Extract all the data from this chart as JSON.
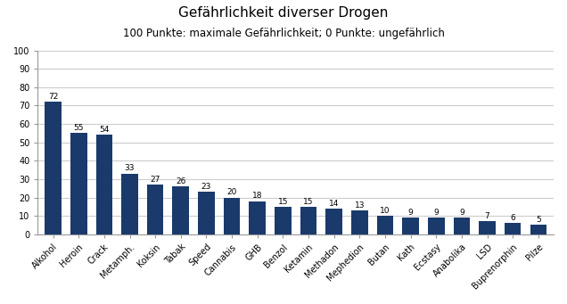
{
  "title": "Gefährlichkeit diverser Drogen",
  "subtitle": "100 Punkte: maximale Gefährlichkeit; 0 Punkte: ungefährlich",
  "categories": [
    "Alkohol",
    "Heroin",
    "Crack",
    "Metamph.",
    "Koksin",
    "Tabak",
    "Speed",
    "Cannabis",
    "GHB",
    "Benzol",
    "Ketamin",
    "Methadon",
    "Mephedion",
    "Butan",
    "Kath",
    "Ecstasy",
    "Anabolika",
    "LSD",
    "Buprenorphin",
    "Pilze"
  ],
  "values": [
    72,
    55,
    54,
    33,
    27,
    26,
    23,
    20,
    18,
    15,
    15,
    14,
    13,
    10,
    9,
    9,
    9,
    7,
    6,
    5
  ],
  "bar_color": "#1a3a6b",
  "ylim": [
    0,
    100
  ],
  "yticks": [
    0,
    10,
    20,
    30,
    40,
    50,
    60,
    70,
    80,
    90,
    100
  ],
  "title_fontsize": 11,
  "subtitle_fontsize": 8.5,
  "value_fontsize": 6.5,
  "tick_fontsize": 7,
  "background_color": "#ffffff",
  "plot_bg_color": "#ffffff",
  "grid_color": "#cccccc",
  "spine_color": "#999999"
}
